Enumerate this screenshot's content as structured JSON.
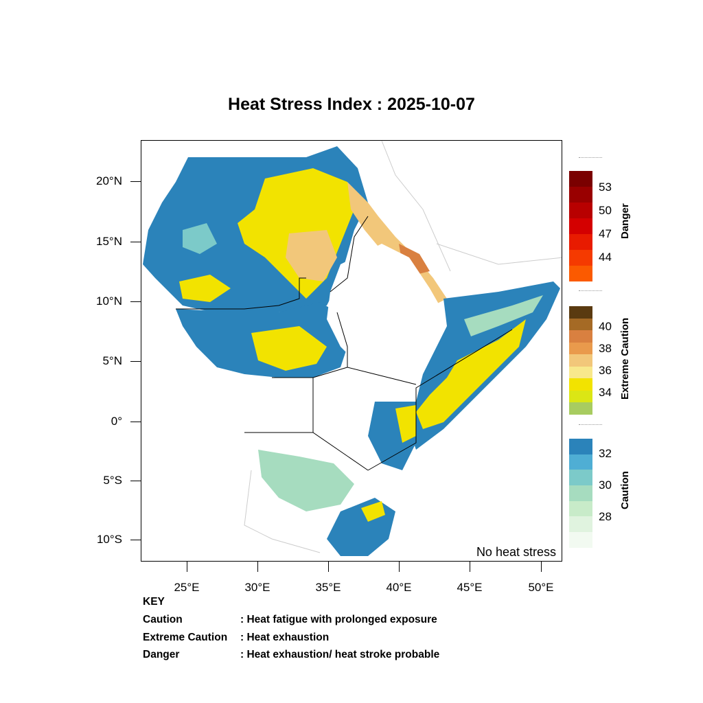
{
  "title": "Heat Stress Index : 2025-10-07",
  "map": {
    "overlay_text": "No heat stress",
    "lat_ticks": [
      "20°N",
      "15°N",
      "10°N",
      "5°N",
      "0°",
      "5°S",
      "10°S"
    ],
    "lon_ticks": [
      "25°E",
      "30°E",
      "35°E",
      "40°E",
      "45°E",
      "50°E"
    ]
  },
  "legend": {
    "danger": {
      "title": "Danger",
      "labels": [
        "53",
        "50",
        "47",
        "44"
      ],
      "colors": [
        "#7a0000",
        "#990000",
        "#b80000",
        "#d40000",
        "#e81b00",
        "#f53a00",
        "#fb5a00"
      ]
    },
    "extreme_caution": {
      "title": "Extreme Caution",
      "labels": [
        "40",
        "38",
        "36",
        "34"
      ],
      "colors": [
        "#5a3a10",
        "#a56a25",
        "#d98040",
        "#e99a4c",
        "#f2c77a",
        "#f8e88c",
        "#f2e300",
        "#dbe615",
        "#a8cc60"
      ]
    },
    "caution": {
      "title": "Caution",
      "labels": [
        "32",
        "30",
        "28"
      ],
      "colors": [
        "#2b83ba",
        "#4faed4",
        "#7ccac9",
        "#a6dcbf",
        "#c8ebc9",
        "#e0f3df",
        "#f2faf1"
      ]
    }
  },
  "key": {
    "heading": "KEY",
    "rows": [
      {
        "term": "Caution",
        "desc": ": Heat fatigue with prolonged exposure"
      },
      {
        "term": "Extreme Caution",
        "desc": " : Heat exhaustion"
      },
      {
        "term": "Danger",
        "desc": ": Heat exhaustion/ heat stroke probable"
      }
    ]
  }
}
